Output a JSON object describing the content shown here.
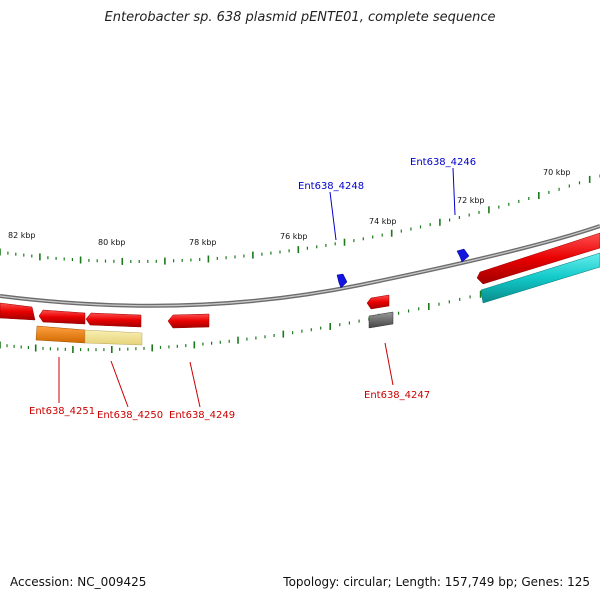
{
  "header": {
    "title": "Enterobacter sp. 638 plasmid pENTE01, complete sequence"
  },
  "footer": {
    "accession": "Accession: NC_009425",
    "summary": "Topology: circular; Length: 157,749 bp; Genes: 125"
  },
  "map": {
    "kbp_labels": [
      {
        "id": "82",
        "text": "82 kbp"
      },
      {
        "id": "80",
        "text": "80 kbp"
      },
      {
        "id": "78",
        "text": "78 kbp"
      },
      {
        "id": "76",
        "text": "76 kbp"
      },
      {
        "id": "74",
        "text": "74 kbp"
      },
      {
        "id": "72",
        "text": "72 kbp"
      },
      {
        "id": "70",
        "text": "70 kbp"
      }
    ],
    "gene_labels": [
      {
        "id": "4246",
        "text": "Ent638_4246",
        "color": "#0000cc"
      },
      {
        "id": "4247",
        "text": "Ent638_4247",
        "color": "#cc0000"
      },
      {
        "id": "4248",
        "text": "Ent638_4248",
        "color": "#0000cc"
      },
      {
        "id": "4249",
        "text": "Ent638_4249",
        "color": "#cc0000"
      },
      {
        "id": "4250",
        "text": "Ent638_4250",
        "color": "#cc0000"
      },
      {
        "id": "4251",
        "text": "Ent638_4251",
        "color": "#cc0000"
      }
    ],
    "colors": {
      "backbone": "#8a8a8a",
      "tick": "#1a7a1a",
      "cds_red": "#e00000",
      "cds_blue": "#1010e0",
      "orange": "#f08000",
      "pale_yellow": "#f0e08c",
      "gray_feature": "#666666",
      "cyan": "#11c8c8"
    }
  }
}
